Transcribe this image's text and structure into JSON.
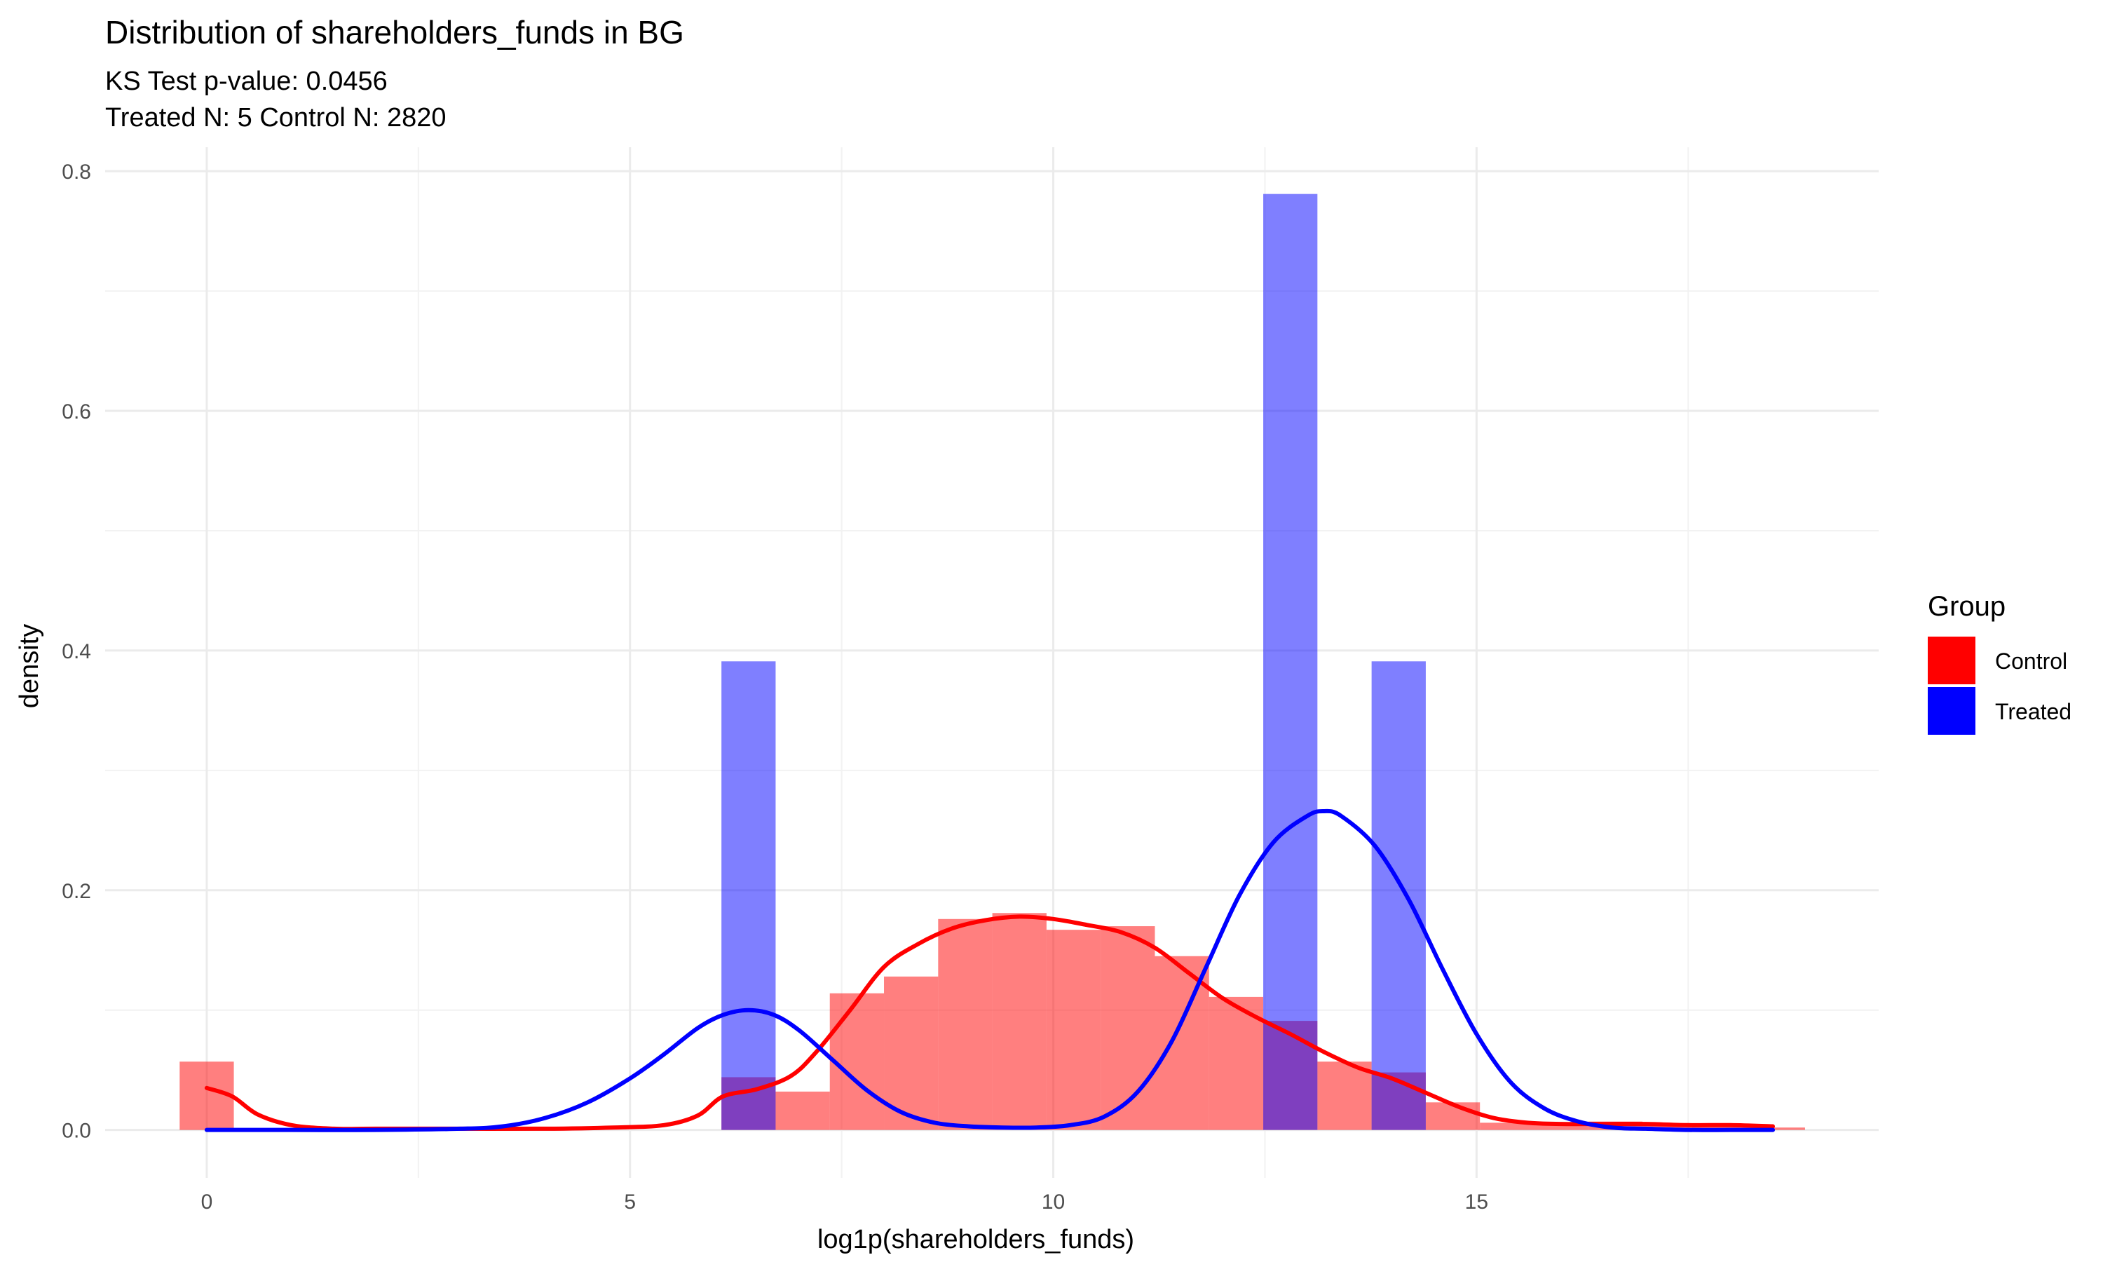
{
  "chart_data": {
    "type": "histogram",
    "title": "Distribution of shareholders_funds in BG",
    "subtitle_lines": [
      "KS Test p-value: 0.0456",
      "Treated N: 5 Control N: 2820"
    ],
    "xlabel": "log1p(shareholders_funds)",
    "ylabel": "density",
    "xlim": [
      -1.2,
      19.75
    ],
    "ylim": [
      -0.04,
      0.82
    ],
    "x_ticks": [
      0,
      5,
      10,
      15
    ],
    "x_tick_labels": [
      "0",
      "5",
      "10",
      "15"
    ],
    "y_ticks": [
      0.0,
      0.2,
      0.4,
      0.6,
      0.8
    ],
    "y_tick_labels": [
      "0.0",
      "0.2",
      "0.4",
      "0.6",
      "0.8"
    ],
    "grid": true,
    "legend": {
      "title": "Group",
      "position": "right"
    },
    "bin_width": 0.64,
    "series": [
      {
        "name": "Control",
        "color": "#ff0000",
        "bar_opacity": 0.5,
        "bins": [
          {
            "x0": -0.32,
            "x1": 0.32,
            "density": 0.057
          },
          {
            "x0": 6.08,
            "x1": 6.72,
            "density": 0.044
          },
          {
            "x0": 6.72,
            "x1": 7.36,
            "density": 0.032
          },
          {
            "x0": 7.36,
            "x1": 8.0,
            "density": 0.114
          },
          {
            "x0": 8.0,
            "x1": 8.64,
            "density": 0.128
          },
          {
            "x0": 8.64,
            "x1": 9.28,
            "density": 0.176
          },
          {
            "x0": 9.28,
            "x1": 9.92,
            "density": 0.181
          },
          {
            "x0": 9.92,
            "x1": 10.56,
            "density": 0.167
          },
          {
            "x0": 10.56,
            "x1": 11.2,
            "density": 0.17
          },
          {
            "x0": 11.2,
            "x1": 11.84,
            "density": 0.145
          },
          {
            "x0": 11.84,
            "x1": 12.48,
            "density": 0.111
          },
          {
            "x0": 12.48,
            "x1": 13.12,
            "density": 0.091
          },
          {
            "x0": 13.12,
            "x1": 13.76,
            "density": 0.057
          },
          {
            "x0": 13.76,
            "x1": 14.4,
            "density": 0.048
          },
          {
            "x0": 14.4,
            "x1": 15.04,
            "density": 0.023
          },
          {
            "x0": 15.04,
            "x1": 15.68,
            "density": 0.006
          },
          {
            "x0": 15.68,
            "x1": 16.32,
            "density": 0.004
          },
          {
            "x0": 16.32,
            "x1": 16.96,
            "density": 0.007
          },
          {
            "x0": 16.96,
            "x1": 17.6,
            "density": 0.005
          },
          {
            "x0": 17.6,
            "x1": 18.24,
            "density": 0.004
          },
          {
            "x0": 18.24,
            "x1": 18.88,
            "density": 0.002
          }
        ],
        "density_curve": {
          "x": [
            0.0,
            0.3,
            0.6,
            1.0,
            1.5,
            2.0,
            3.0,
            4.0,
            4.8,
            5.4,
            5.8,
            6.1,
            6.5,
            6.9,
            7.2,
            7.6,
            8.0,
            8.4,
            8.8,
            9.2,
            9.6,
            10.0,
            10.4,
            10.8,
            11.2,
            11.6,
            12.0,
            12.4,
            12.8,
            13.2,
            13.6,
            14.0,
            14.4,
            14.8,
            15.2,
            15.6,
            16.0,
            16.5,
            17.0,
            17.5,
            18.0,
            18.5
          ],
          "y": [
            0.035,
            0.028,
            0.013,
            0.004,
            0.001,
            0.001,
            0.001,
            0.001,
            0.002,
            0.004,
            0.012,
            0.028,
            0.034,
            0.045,
            0.065,
            0.1,
            0.136,
            0.155,
            0.168,
            0.175,
            0.178,
            0.176,
            0.171,
            0.165,
            0.152,
            0.131,
            0.11,
            0.094,
            0.08,
            0.065,
            0.052,
            0.043,
            0.031,
            0.019,
            0.01,
            0.006,
            0.005,
            0.005,
            0.005,
            0.004,
            0.004,
            0.003
          ]
        }
      },
      {
        "name": "Treated",
        "color": "#0000ff",
        "bar_opacity": 0.5,
        "bins": [
          {
            "x0": 6.08,
            "x1": 6.72,
            "density": 0.391
          },
          {
            "x0": 12.48,
            "x1": 13.12,
            "density": 0.781
          },
          {
            "x0": 13.76,
            "x1": 14.4,
            "density": 0.391
          }
        ],
        "density_curve": {
          "x": [
            0.0,
            1.0,
            2.0,
            3.0,
            3.5,
            4.0,
            4.5,
            5.0,
            5.4,
            5.8,
            6.1,
            6.4,
            6.7,
            7.0,
            7.4,
            7.8,
            8.2,
            8.6,
            9.0,
            9.4,
            9.8,
            10.2,
            10.6,
            11.0,
            11.4,
            11.8,
            12.2,
            12.6,
            13.0,
            13.2,
            13.4,
            13.8,
            14.2,
            14.6,
            15.0,
            15.4,
            15.8,
            16.2,
            16.6,
            17.0,
            17.5,
            18.0,
            18.5
          ],
          "y": [
            0.0,
            0.0,
            0.0,
            0.001,
            0.003,
            0.01,
            0.023,
            0.043,
            0.063,
            0.085,
            0.096,
            0.1,
            0.096,
            0.083,
            0.058,
            0.033,
            0.015,
            0.006,
            0.003,
            0.002,
            0.002,
            0.004,
            0.011,
            0.032,
            0.074,
            0.135,
            0.196,
            0.24,
            0.262,
            0.266,
            0.262,
            0.237,
            0.192,
            0.134,
            0.08,
            0.04,
            0.018,
            0.007,
            0.002,
            0.001,
            0.0,
            0.0,
            0.0
          ]
        }
      }
    ]
  }
}
